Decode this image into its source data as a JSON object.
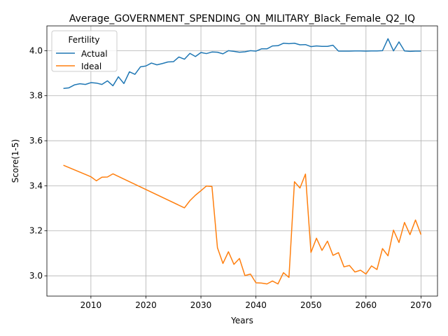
{
  "chart_data": {
    "type": "line",
    "title": "Average_GOVERNMENT_SPENDING_ON_MILITARY_Black_Female_Q2_IQ",
    "xlabel": "Years",
    "ylabel": "Score(1-5)",
    "xlim": [
      2002,
      2073
    ],
    "ylim": [
      2.91,
      4.11
    ],
    "xticks": [
      2010,
      2020,
      2030,
      2040,
      2050,
      2060,
      2070
    ],
    "yticks": [
      3.0,
      3.2,
      3.4,
      3.6,
      3.8,
      4.0
    ],
    "ytick_labels": [
      "3.0",
      "3.2",
      "3.4",
      "3.6",
      "3.8",
      "4.0"
    ],
    "grid": true,
    "legend": {
      "title": "Fertility",
      "position": "upper-left"
    },
    "series": [
      {
        "name": "Actual",
        "color": "#1f77b4",
        "x": [
          2005,
          2006,
          2007,
          2008,
          2009,
          2010,
          2011,
          2012,
          2013,
          2014,
          2015,
          2016,
          2017,
          2018,
          2019,
          2020,
          2021,
          2022,
          2023,
          2024,
          2025,
          2026,
          2027,
          2028,
          2029,
          2030,
          2031,
          2032,
          2033,
          2034,
          2035,
          2036,
          2037,
          2038,
          2039,
          2040,
          2041,
          2042,
          2043,
          2044,
          2045,
          2046,
          2047,
          2048,
          2049,
          2050,
          2051,
          2052,
          2053,
          2054,
          2055,
          2056,
          2057,
          2058,
          2059,
          2060,
          2061,
          2062,
          2063,
          2064,
          2065,
          2066,
          2067,
          2068,
          2069,
          2070
        ],
        "values": [
          3.832,
          3.835,
          3.848,
          3.853,
          3.85,
          3.858,
          3.856,
          3.85,
          3.866,
          3.844,
          3.884,
          3.854,
          3.906,
          3.895,
          3.928,
          3.932,
          3.945,
          3.937,
          3.943,
          3.95,
          3.951,
          3.972,
          3.962,
          3.988,
          3.974,
          3.992,
          3.987,
          3.994,
          3.993,
          3.986,
          4.0,
          3.997,
          3.993,
          3.995,
          4.0,
          3.998,
          4.008,
          4.008,
          4.021,
          4.022,
          4.033,
          4.031,
          4.033,
          4.026,
          4.027,
          4.018,
          4.021,
          4.019,
          4.019,
          4.024,
          3.998,
          3.998,
          3.998,
          3.999,
          3.999,
          3.998,
          3.999,
          3.999,
          4.0,
          4.053,
          3.999,
          4.039,
          3.999,
          3.997,
          3.998,
          3.998
        ]
      },
      {
        "name": "Ideal",
        "color": "#ff7f0e",
        "x": [
          2005,
          2010,
          2011,
          2012,
          2013,
          2014,
          2027,
          2028,
          2029,
          2030,
          2031,
          2032,
          2033,
          2034,
          2035,
          2036,
          2037,
          2038,
          2039,
          2040,
          2041,
          2042,
          2043,
          2044,
          2045,
          2046,
          2047,
          2048,
          2049,
          2050,
          2051,
          2052,
          2053,
          2054,
          2055,
          2056,
          2057,
          2058,
          2059,
          2060,
          2061,
          2062,
          2063,
          2064,
          2065,
          2066,
          2067,
          2068,
          2069,
          2070
        ],
        "values": [
          3.491,
          3.44,
          3.422,
          3.438,
          3.439,
          3.453,
          3.302,
          3.334,
          3.358,
          3.378,
          3.399,
          3.397,
          3.125,
          3.055,
          3.107,
          3.051,
          3.077,
          3.001,
          3.008,
          2.969,
          2.968,
          2.964,
          2.977,
          2.964,
          3.014,
          2.993,
          3.418,
          3.39,
          3.452,
          3.104,
          3.167,
          3.113,
          3.154,
          3.091,
          3.103,
          3.04,
          3.046,
          3.017,
          3.025,
          3.008,
          3.044,
          3.028,
          3.121,
          3.089,
          3.203,
          3.148,
          3.237,
          3.183,
          3.248,
          3.183
        ]
      }
    ]
  }
}
